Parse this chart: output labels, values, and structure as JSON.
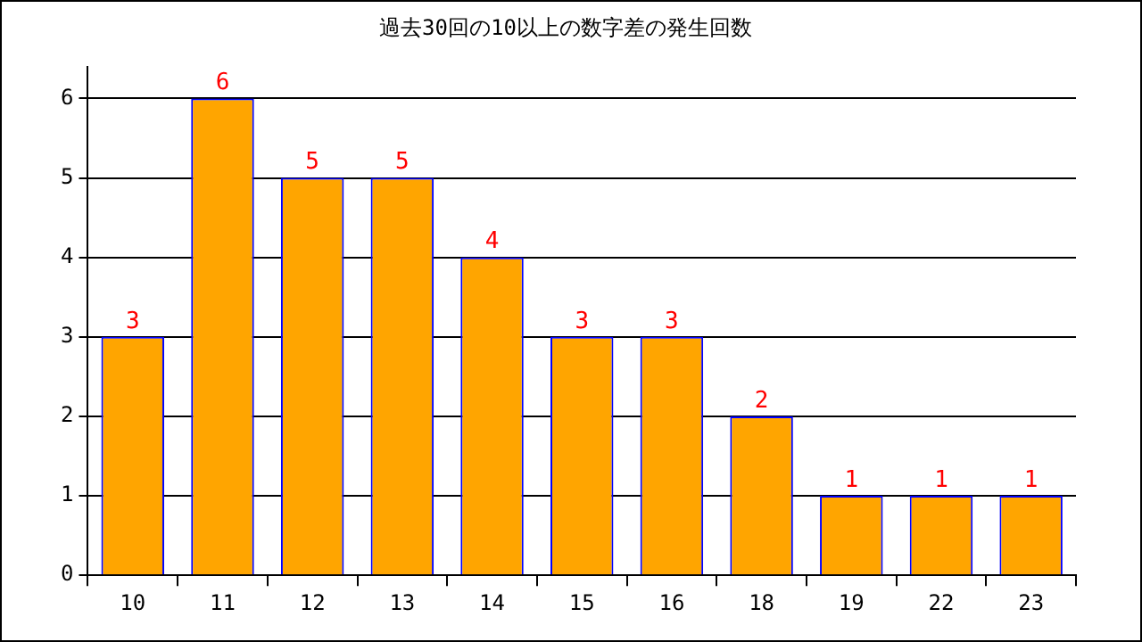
{
  "chart_data": {
    "type": "bar",
    "title": "過去30回の10以上の数字差の発生回数",
    "categories": [
      "10",
      "11",
      "12",
      "13",
      "14",
      "15",
      "16",
      "18",
      "19",
      "22",
      "23"
    ],
    "values": [
      3,
      6,
      5,
      5,
      4,
      3,
      3,
      2,
      1,
      1,
      1
    ],
    "color": "#ffa500",
    "ylim": [
      0,
      6.4
    ],
    "yticks": [
      0,
      1,
      2,
      3,
      4,
      5,
      6
    ],
    "grid": "y",
    "data_labels": true,
    "legend": false
  }
}
